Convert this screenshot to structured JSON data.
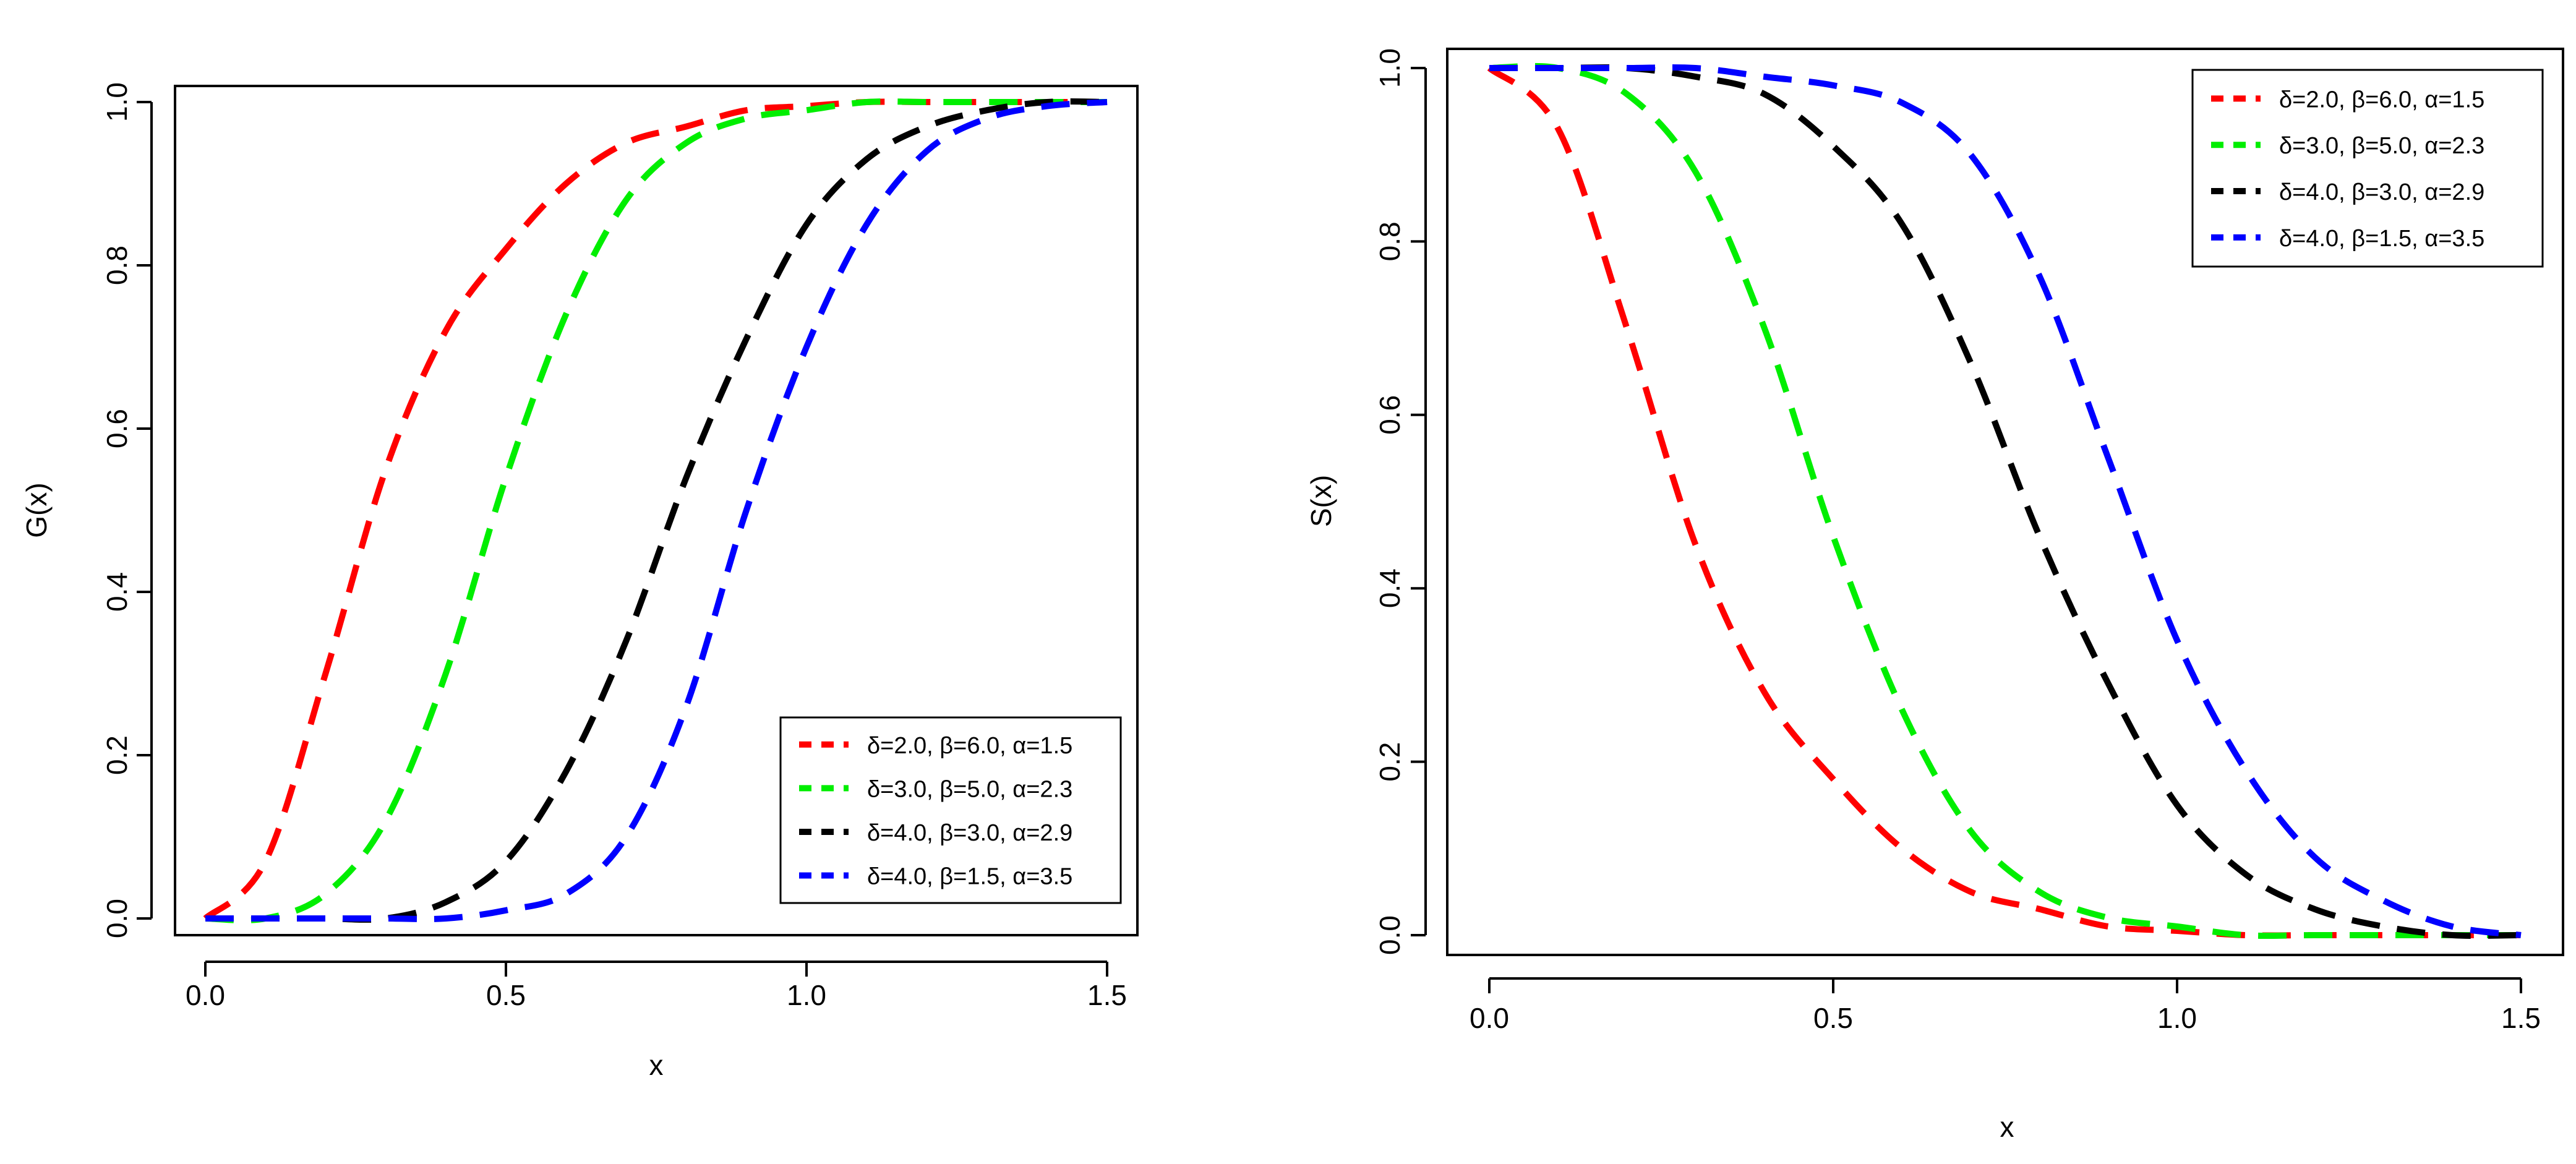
{
  "chart_data": [
    {
      "type": "line",
      "title": "",
      "xlabel": "x",
      "ylabel": "G(x)",
      "xlim": [
        0,
        1.5
      ],
      "ylim": [
        0,
        1
      ],
      "xticks": [
        0.0,
        0.5,
        1.0,
        1.5
      ],
      "xtick_labels": [
        "0.0",
        "0.5",
        "1.0",
        "1.5"
      ],
      "yticks": [
        0.0,
        0.2,
        0.4,
        0.6,
        0.8,
        1.0
      ],
      "ytick_labels": [
        "0.0",
        "0.2",
        "0.4",
        "0.6",
        "0.8",
        "1.0"
      ],
      "grid": false,
      "legend_position": "bottom-right",
      "x": [
        0.0,
        0.1,
        0.2,
        0.3,
        0.4,
        0.5,
        0.6,
        0.7,
        0.8,
        0.9,
        1.0,
        1.1,
        1.2,
        1.3,
        1.4,
        1.5
      ],
      "series": [
        {
          "name": "δ=2.0, β=6.0, α=1.5",
          "color": "#ff0000",
          "values": [
            0.0,
            0.07,
            0.3,
            0.55,
            0.72,
            0.82,
            0.9,
            0.95,
            0.97,
            0.99,
            0.995,
            1.0,
            1.0,
            1.0,
            1.0,
            1.0
          ]
        },
        {
          "name": "δ=3.0, β=5.0, α=2.3",
          "color": "#00ee00",
          "values": [
            0.0,
            0.0,
            0.03,
            0.12,
            0.3,
            0.54,
            0.74,
            0.88,
            0.95,
            0.98,
            0.99,
            1.0,
            1.0,
            1.0,
            1.0,
            1.0
          ]
        },
        {
          "name": "δ=4.0, β=3.0, α=2.9",
          "color": "#000000",
          "values": [
            0.0,
            0.0,
            0.0,
            0.0,
            0.02,
            0.07,
            0.18,
            0.34,
            0.54,
            0.71,
            0.85,
            0.93,
            0.97,
            0.99,
            1.0,
            1.0
          ]
        },
        {
          "name": "δ=4.0, β=1.5, α=3.5",
          "color": "#0000ff",
          "values": [
            0.0,
            0.0,
            0.0,
            0.0,
            0.0,
            0.01,
            0.03,
            0.1,
            0.26,
            0.5,
            0.7,
            0.85,
            0.94,
            0.98,
            0.995,
            1.0
          ]
        }
      ]
    },
    {
      "type": "line",
      "title": "",
      "xlabel": "x",
      "ylabel": "S(x)",
      "xlim": [
        0,
        1.5
      ],
      "ylim": [
        0,
        1
      ],
      "xticks": [
        0.0,
        0.5,
        1.0,
        1.5
      ],
      "xtick_labels": [
        "0.0",
        "0.5",
        "1.0",
        "1.5"
      ],
      "yticks": [
        0.0,
        0.2,
        0.4,
        0.6,
        0.8,
        1.0
      ],
      "ytick_labels": [
        "0.0",
        "0.2",
        "0.4",
        "0.6",
        "0.8",
        "1.0"
      ],
      "grid": false,
      "legend_position": "top-right",
      "x": [
        0.0,
        0.1,
        0.2,
        0.3,
        0.4,
        0.5,
        0.6,
        0.7,
        0.8,
        0.9,
        1.0,
        1.1,
        1.2,
        1.3,
        1.4,
        1.5
      ],
      "series": [
        {
          "name": "δ=2.0, β=6.0, α=1.5",
          "color": "#ff0000",
          "values": [
            1.0,
            0.93,
            0.7,
            0.45,
            0.28,
            0.18,
            0.1,
            0.05,
            0.03,
            0.01,
            0.005,
            0.0,
            0.0,
            0.0,
            0.0,
            0.0
          ]
        },
        {
          "name": "δ=3.0, β=5.0, α=2.3",
          "color": "#00ee00",
          "values": [
            1.0,
            1.0,
            0.97,
            0.88,
            0.7,
            0.46,
            0.26,
            0.12,
            0.05,
            0.02,
            0.01,
            0.0,
            0.0,
            0.0,
            0.0,
            0.0
          ]
        },
        {
          "name": "δ=4.0, β=3.0, α=2.9",
          "color": "#000000",
          "values": [
            1.0,
            1.0,
            1.0,
            0.99,
            0.97,
            0.91,
            0.82,
            0.66,
            0.46,
            0.29,
            0.15,
            0.07,
            0.03,
            0.01,
            0.0,
            0.0
          ]
        },
        {
          "name": "δ=4.0, β=1.5, α=3.5",
          "color": "#0000ff",
          "values": [
            1.0,
            1.0,
            1.0,
            1.0,
            0.99,
            0.98,
            0.96,
            0.9,
            0.76,
            0.55,
            0.34,
            0.19,
            0.09,
            0.04,
            0.01,
            0.0
          ]
        }
      ]
    }
  ]
}
